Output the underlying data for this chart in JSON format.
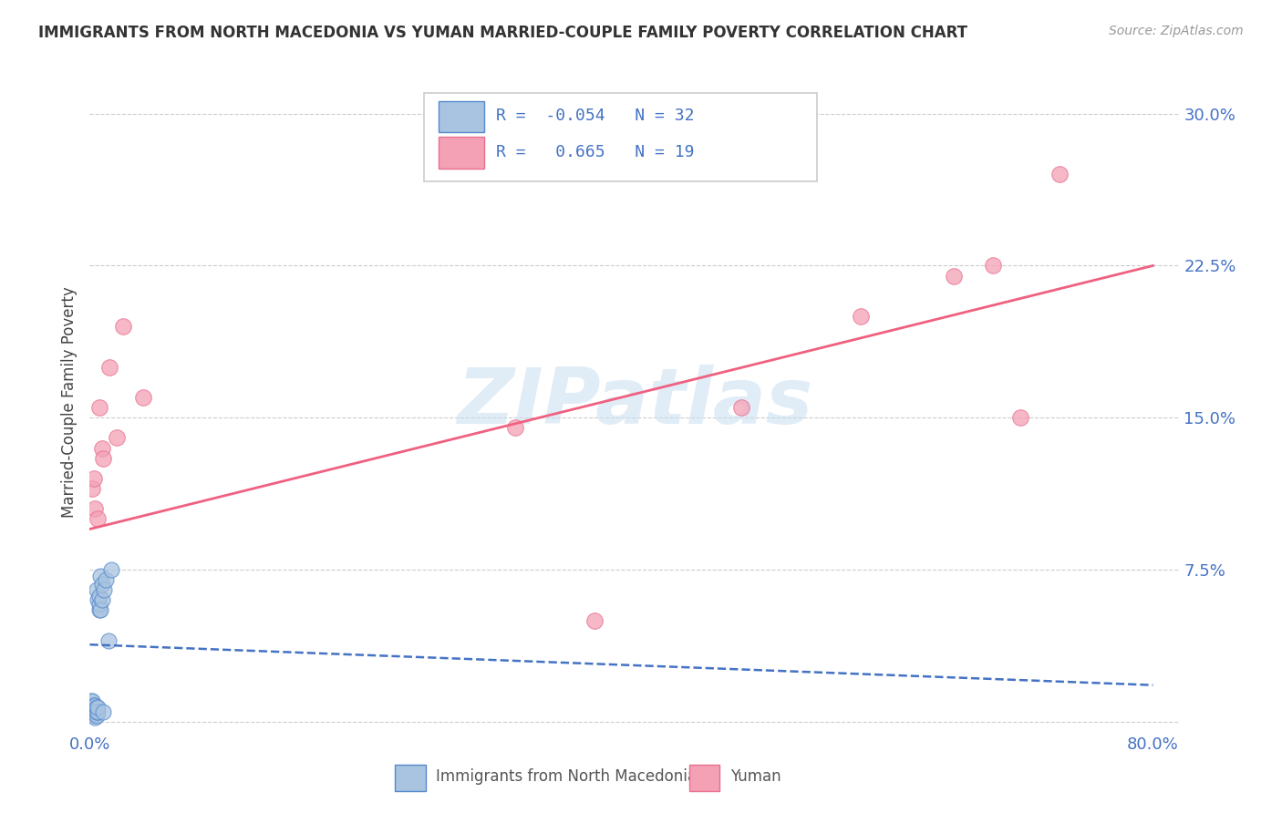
{
  "title": "IMMIGRANTS FROM NORTH MACEDONIA VS YUMAN MARRIED-COUPLE FAMILY POVERTY CORRELATION CHART",
  "source": "Source: ZipAtlas.com",
  "ylabel": "Married-Couple Family Poverty",
  "xlim": [
    0.0,
    0.82
  ],
  "ylim": [
    -0.005,
    0.32
  ],
  "xticks": [
    0.0,
    0.2,
    0.4,
    0.6,
    0.8
  ],
  "xticklabels": [
    "0.0%",
    "",
    "",
    "",
    "80.0%"
  ],
  "yticks": [
    0.0,
    0.075,
    0.15,
    0.225,
    0.3
  ],
  "yticklabels": [
    "",
    "7.5%",
    "15.0%",
    "22.5%",
    "30.0%"
  ],
  "blue_R": -0.054,
  "blue_N": 32,
  "pink_R": 0.665,
  "pink_N": 19,
  "blue_color": "#a8c4e0",
  "pink_color": "#f4a0b5",
  "blue_edge_color": "#5588cc",
  "pink_edge_color": "#e87090",
  "blue_line_color": "#4472c4",
  "pink_line_color": "#f06080",
  "watermark": "ZIPatlas",
  "legend_label_blue": "Immigrants from North Macedonia",
  "legend_label_pink": "Yuman",
  "blue_x": [
    0.001,
    0.001,
    0.002,
    0.002,
    0.002,
    0.003,
    0.003,
    0.003,
    0.003,
    0.004,
    0.004,
    0.004,
    0.004,
    0.005,
    0.005,
    0.005,
    0.005,
    0.006,
    0.006,
    0.006,
    0.007,
    0.007,
    0.007,
    0.008,
    0.008,
    0.009,
    0.009,
    0.01,
    0.011,
    0.012,
    0.014,
    0.016
  ],
  "blue_y": [
    0.005,
    0.01,
    0.005,
    0.007,
    0.01,
    0.003,
    0.005,
    0.007,
    0.008,
    0.002,
    0.004,
    0.006,
    0.008,
    0.003,
    0.005,
    0.007,
    0.065,
    0.005,
    0.007,
    0.06,
    0.055,
    0.058,
    0.062,
    0.055,
    0.072,
    0.06,
    0.068,
    0.005,
    0.065,
    0.07,
    0.04,
    0.075
  ],
  "pink_x": [
    0.002,
    0.003,
    0.004,
    0.006,
    0.007,
    0.009,
    0.01,
    0.015,
    0.02,
    0.025,
    0.04,
    0.32,
    0.38,
    0.49,
    0.58,
    0.65,
    0.68,
    0.7,
    0.73
  ],
  "pink_y": [
    0.115,
    0.12,
    0.105,
    0.1,
    0.155,
    0.135,
    0.13,
    0.175,
    0.14,
    0.195,
    0.16,
    0.145,
    0.05,
    0.155,
    0.2,
    0.22,
    0.225,
    0.15,
    0.27
  ]
}
